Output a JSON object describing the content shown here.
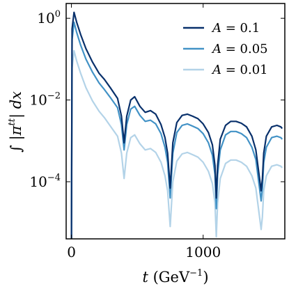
{
  "chart_data": {
    "type": "line",
    "xlabel": "t (GeV⁻¹)",
    "ylabel": "∫ |πᵗᵗ| dx",
    "xlim": [
      -40,
      1620
    ],
    "ylim": [
      4e-06,
      2.3
    ],
    "yscale": "log",
    "grid": false,
    "legend": "top-right",
    "x_ticks": [
      {
        "value": 0,
        "label": "0"
      },
      {
        "value": 1000,
        "label": "1000"
      }
    ],
    "y_ticks": [
      {
        "value": 1,
        "base": "10",
        "exp": "0"
      },
      {
        "value": 0.01,
        "base": "10",
        "exp": "−2"
      },
      {
        "value": 0.0001,
        "base": "10",
        "exp": "−4"
      }
    ],
    "series": [
      {
        "name": "A = 0.1",
        "color": "#08306b",
        "x": [
          0,
          5,
          20,
          40,
          70,
          110,
          160,
          210,
          250,
          300,
          350,
          380,
          400,
          420,
          450,
          480,
          520,
          560,
          600,
          640,
          680,
          710,
          730,
          750,
          770,
          800,
          840,
          880,
          920,
          960,
          1000,
          1040,
          1070,
          1090,
          1100,
          1110,
          1130,
          1170,
          1210,
          1250,
          1290,
          1330,
          1370,
          1400,
          1440,
          1450,
          1460,
          1480,
          1520,
          1560,
          1590,
          1600
        ],
        "y": [
          4e-06,
          0.55,
          1.4,
          0.8,
          0.4,
          0.18,
          0.085,
          0.045,
          0.032,
          0.019,
          0.011,
          0.004,
          0.0009,
          0.004,
          0.01,
          0.012,
          0.007,
          0.005,
          0.0055,
          0.0045,
          0.0025,
          0.0012,
          0.0005,
          7e-05,
          0.0009,
          0.0028,
          0.0042,
          0.0045,
          0.004,
          0.0035,
          0.0026,
          0.0016,
          0.0008,
          0.00025,
          4e-05,
          0.00025,
          0.0011,
          0.0024,
          0.003,
          0.003,
          0.0027,
          0.0022,
          0.0013,
          0.0006,
          6e-05,
          0.00012,
          0.0005,
          0.0013,
          0.0022,
          0.0024,
          0.0022,
          0.002
        ]
      },
      {
        "name": "A = 0.05",
        "color": "#4292c6",
        "x": [
          0,
          5,
          20,
          40,
          70,
          110,
          160,
          210,
          250,
          300,
          350,
          380,
          400,
          420,
          450,
          480,
          520,
          560,
          600,
          640,
          680,
          710,
          730,
          750,
          770,
          800,
          840,
          880,
          920,
          960,
          1000,
          1040,
          1070,
          1090,
          1100,
          1110,
          1130,
          1170,
          1210,
          1250,
          1290,
          1330,
          1370,
          1400,
          1440,
          1450,
          1460,
          1480,
          1520,
          1560,
          1590,
          1600
        ],
        "y": [
          4e-06,
          0.3,
          0.8,
          0.45,
          0.22,
          0.1,
          0.048,
          0.026,
          0.018,
          0.011,
          0.0065,
          0.0025,
          0.0006,
          0.0025,
          0.006,
          0.007,
          0.0042,
          0.003,
          0.0032,
          0.0026,
          0.0015,
          0.0007,
          0.0003,
          4e-05,
          0.0005,
          0.0016,
          0.0024,
          0.0026,
          0.0023,
          0.002,
          0.0015,
          0.0009,
          0.00045,
          0.00015,
          2.2e-05,
          0.00015,
          0.0006,
          0.0014,
          0.0017,
          0.0017,
          0.0015,
          0.0012,
          0.0007,
          0.00035,
          3.4e-05,
          7e-05,
          0.0003,
          0.0007,
          0.0012,
          0.0013,
          0.0012,
          0.0011
        ]
      },
      {
        "name": "A = 0.01",
        "color": "#b3d3e8",
        "x": [
          0,
          5,
          20,
          40,
          70,
          110,
          160,
          210,
          250,
          300,
          350,
          380,
          400,
          420,
          450,
          480,
          520,
          560,
          600,
          640,
          680,
          710,
          730,
          750,
          770,
          800,
          840,
          880,
          920,
          960,
          1000,
          1040,
          1070,
          1090,
          1100,
          1110,
          1130,
          1170,
          1210,
          1250,
          1290,
          1330,
          1370,
          1400,
          1440,
          1450,
          1460,
          1480,
          1520,
          1560,
          1590,
          1600
        ],
        "y": [
          4e-06,
          0.06,
          0.16,
          0.09,
          0.045,
          0.02,
          0.0095,
          0.0053,
          0.0037,
          0.0022,
          0.0013,
          0.0005,
          0.00012,
          0.0005,
          0.0012,
          0.0014,
          0.00085,
          0.0006,
          0.00065,
          0.00052,
          0.0003,
          0.00014,
          6e-05,
          8e-06,
          0.0001,
          0.00032,
          0.00048,
          0.00052,
          0.00046,
          0.0004,
          0.0003,
          0.00018,
          9e-05,
          3e-05,
          4.5e-06,
          3e-05,
          0.00012,
          0.00028,
          0.00034,
          0.00034,
          0.0003,
          0.00024,
          0.00014,
          7e-05,
          6.8e-06,
          1.4e-05,
          6e-05,
          0.00014,
          0.00024,
          0.00026,
          0.00024,
          0.00022
        ]
      }
    ]
  }
}
